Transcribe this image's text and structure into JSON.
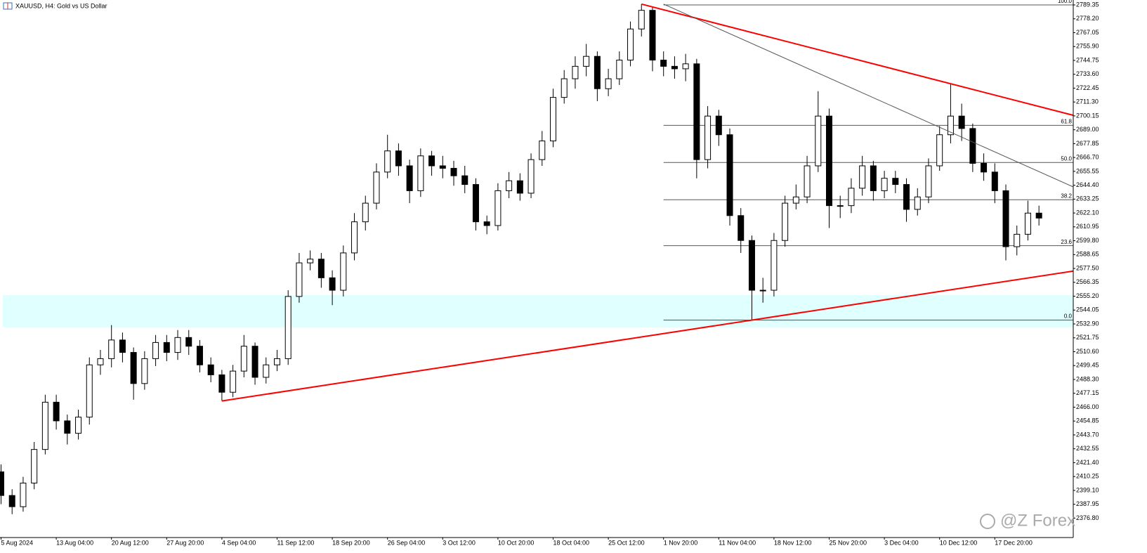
{
  "chart_data": {
    "type": "candlestick",
    "title": "XAUUSD, H4: Gold vs US Dollar",
    "watermark": "@Z Forex",
    "categories": [
      "5 Aug 2024",
      null,
      null,
      null,
      null,
      "13 Aug 04:00",
      null,
      null,
      null,
      null,
      "20 Aug 12:00",
      null,
      null,
      null,
      null,
      "27 Aug 20:00",
      null,
      null,
      null,
      null,
      "4 Sep 04:00",
      null,
      null,
      null,
      null,
      "11 Sep 12:00",
      null,
      null,
      null,
      null,
      "18 Sep 20:00",
      null,
      null,
      null,
      null,
      "26 Sep 04:00",
      null,
      null,
      null,
      null,
      "3 Oct 12:00",
      null,
      null,
      null,
      null,
      "10 Oct 20:00",
      null,
      null,
      null,
      null,
      "18 Oct 04:00",
      null,
      null,
      null,
      null,
      "25 Oct 12:00",
      null,
      null,
      null,
      null,
      "1 Nov 20:00",
      null,
      null,
      null,
      null,
      "11 Nov 04:00",
      null,
      null,
      null,
      null,
      "18 Nov 12:00",
      null,
      null,
      null,
      null,
      "25 Nov 20:00",
      null,
      null,
      null,
      null,
      "3 Dec 04:00",
      null,
      null,
      null,
      null,
      "10 Dec 12:00",
      null,
      null,
      null,
      null,
      "17 Dec 20:00",
      null,
      null,
      null,
      null
    ],
    "open": [
      2414,
      2395,
      2386,
      2405,
      2432,
      2470,
      2455,
      2445,
      2458,
      2500,
      2505,
      2520,
      2510,
      2485,
      2505,
      2518,
      2510,
      2522,
      2515,
      2500,
      2492,
      2478,
      2495,
      2515,
      2490,
      2500,
      2505,
      2555,
      2582,
      2585,
      2570,
      2560,
      2590,
      2615,
      2630,
      2655,
      2672,
      2660,
      2640,
      2668,
      2660,
      2658,
      2652,
      2645,
      2615,
      2612,
      2640,
      2648,
      2638,
      2665,
      2680,
      2715,
      2730,
      2740,
      2748,
      2722,
      2730,
      2745,
      2770,
      2785,
      2745,
      2740,
      2738,
      2742,
      2665,
      2700,
      2685,
      2620,
      2600,
      2560,
      2560,
      2600,
      2630,
      2635,
      2660,
      2700,
      2628,
      2628,
      2642,
      2660,
      2640,
      2650,
      2645,
      2625,
      2635,
      2660,
      2685,
      2700,
      2690,
      2662,
      2655,
      2640,
      2595,
      2605,
      2622
    ],
    "high": [
      2420,
      2400,
      2410,
      2438,
      2476,
      2476,
      2460,
      2464,
      2506,
      2512,
      2532,
      2526,
      2514,
      2511,
      2524,
      2524,
      2528,
      2528,
      2520,
      2506,
      2496,
      2500,
      2524,
      2518,
      2506,
      2512,
      2560,
      2590,
      2592,
      2590,
      2576,
      2596,
      2622,
      2636,
      2662,
      2685,
      2678,
      2665,
      2674,
      2672,
      2668,
      2664,
      2660,
      2650,
      2620,
      2646,
      2655,
      2654,
      2670,
      2688,
      2722,
      2737,
      2748,
      2758,
      2752,
      2738,
      2752,
      2776,
      2790,
      2788,
      2752,
      2748,
      2750,
      2746,
      2708,
      2705,
      2690,
      2626,
      2604,
      2570,
      2606,
      2636,
      2645,
      2668,
      2720,
      2706,
      2636,
      2650,
      2668,
      2664,
      2656,
      2656,
      2650,
      2642,
      2666,
      2692,
      2726,
      2710,
      2694,
      2670,
      2662,
      2645,
      2612,
      2632,
      2628
    ],
    "low": [
      2388,
      2380,
      2382,
      2400,
      2428,
      2448,
      2436,
      2440,
      2452,
      2492,
      2498,
      2502,
      2472,
      2480,
      2499,
      2503,
      2504,
      2508,
      2494,
      2486,
      2471,
      2474,
      2490,
      2484,
      2485,
      2495,
      2500,
      2550,
      2576,
      2562,
      2548,
      2555,
      2584,
      2608,
      2625,
      2650,
      2652,
      2630,
      2635,
      2652,
      2650,
      2644,
      2638,
      2608,
      2605,
      2608,
      2634,
      2632,
      2634,
      2660,
      2675,
      2710,
      2722,
      2732,
      2712,
      2716,
      2725,
      2740,
      2764,
      2736,
      2732,
      2730,
      2728,
      2650,
      2658,
      2676,
      2612,
      2590,
      2536,
      2550,
      2555,
      2595,
      2625,
      2630,
      2655,
      2610,
      2618,
      2622,
      2636,
      2632,
      2634,
      2638,
      2615,
      2620,
      2630,
      2656,
      2678,
      2680,
      2655,
      2648,
      2630,
      2584,
      2588,
      2600,
      2612
    ],
    "close": [
      2395,
      2386,
      2405,
      2432,
      2470,
      2455,
      2445,
      2458,
      2500,
      2505,
      2520,
      2510,
      2485,
      2505,
      2518,
      2510,
      2522,
      2515,
      2500,
      2492,
      2478,
      2495,
      2515,
      2490,
      2500,
      2505,
      2555,
      2582,
      2585,
      2570,
      2560,
      2590,
      2615,
      2630,
      2655,
      2672,
      2660,
      2640,
      2668,
      2660,
      2658,
      2652,
      2645,
      2615,
      2612,
      2640,
      2648,
      2638,
      2665,
      2680,
      2715,
      2730,
      2740,
      2748,
      2722,
      2730,
      2745,
      2770,
      2785,
      2745,
      2740,
      2738,
      2742,
      2665,
      2700,
      2685,
      2620,
      2600,
      2560,
      2560,
      2600,
      2630,
      2635,
      2660,
      2700,
      2628,
      2628,
      2642,
      2660,
      2640,
      2650,
      2645,
      2625,
      2635,
      2660,
      2685,
      2700,
      2690,
      2662,
      2655,
      2640,
      2595,
      2605,
      2622,
      2618
    ],
    "color": "#000000",
    "up_color": "#ffffff",
    "ylim": [
      2361.2,
      2793.3
    ],
    "yticks": [
      2789.35,
      {
        "value": 2778.2,
        "label": "2778.20"
      },
      2767.05,
      {
        "value": 2755.9,
        "label": "2755.90"
      },
      2744.75,
      {
        "value": 2733.6,
        "label": "2733.60"
      },
      2722.45,
      {
        "value": 2711.3,
        "label": "2711.30"
      },
      2700.15,
      {
        "value": 2689,
        "label": "2689.00"
      },
      2677.85,
      {
        "value": 2666.7,
        "label": "2666.70"
      },
      2655.55,
      {
        "value": 2644.4,
        "label": "2644.40"
      },
      2633.25,
      {
        "value": 2622.1,
        "label": "2622.10"
      },
      2610.95,
      {
        "value": 2599.8,
        "label": "2599.80"
      },
      2588.65,
      {
        "value": 2577.5,
        "label": "2577.50"
      },
      2566.35,
      {
        "value": 2555.2,
        "label": "2555.20"
      },
      2544.05,
      {
        "value": 2532.9,
        "label": "2532.90"
      },
      2521.75,
      {
        "value": 2510.6,
        "label": "2510.60"
      },
      2499.45,
      {
        "value": 2488.3,
        "label": "2488.30"
      },
      2477.15,
      {
        "value": 2466,
        "label": "2466.00"
      },
      2454.85,
      {
        "value": 2443.7,
        "label": "2443.70"
      },
      2432.55,
      {
        "value": 2421.4,
        "label": "2421.40"
      },
      2410.25,
      {
        "value": 2399.1,
        "label": "2399.10"
      },
      2387.95,
      {
        "value": 2376.8,
        "label": "2376.80"
      }
    ],
    "zone": {
      "from": 2530,
      "to": 2556,
      "color": "#e0ffff"
    },
    "trendlines": [
      {
        "points": [
          [
            20,
            2471
          ],
          [
            68,
            2536
          ]
        ],
        "color": "#ff0000",
        "width": 2
      },
      {
        "points": [
          [
            58,
            2790
          ],
          [
            86,
            2726
          ]
        ],
        "color": "#ff0000",
        "width": 2
      },
      {
        "points": [
          [
            60,
            2790
          ],
          [
            85,
            2691
          ]
        ],
        "color": "#555555",
        "width": 1
      }
    ],
    "fibonacci": {
      "start": 60,
      "high": 2789.35,
      "low": 2536,
      "color": "#555555",
      "levels": [
        {
          "value": 100,
          "label": "100.0"
        },
        61.8,
        {
          "value": 50,
          "label": "50.0"
        },
        38.2,
        23.6,
        {
          "value": 0,
          "label": "0.0"
        }
      ]
    }
  }
}
